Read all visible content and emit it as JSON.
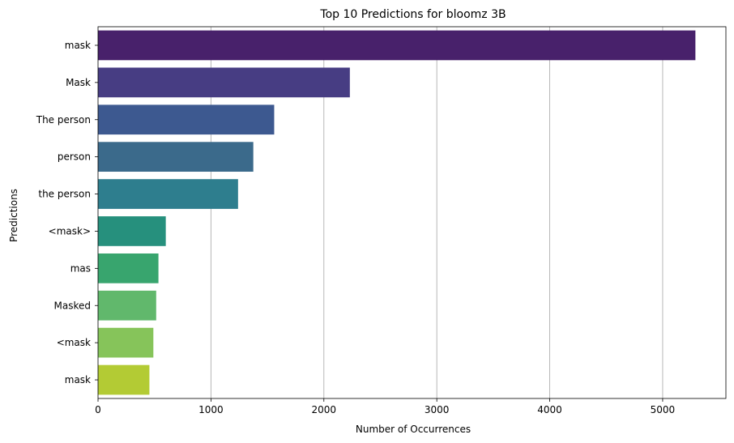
{
  "chart_data": {
    "type": "bar",
    "orientation": "horizontal",
    "title": "Top 10 Predictions for bloomz 3B",
    "xlabel": "Number of Occurrences",
    "ylabel": "Predictions",
    "categories": [
      " mask",
      " Mask",
      "The person",
      " person",
      " the person",
      "<mask>",
      " mas",
      " Masked",
      "<mask",
      "mask"
    ],
    "values": [
      5290,
      2230,
      1560,
      1375,
      1240,
      600,
      535,
      515,
      490,
      455
    ],
    "xlim": [
      0,
      5560
    ],
    "xticks": [
      0,
      1000,
      2000,
      3000,
      4000,
      5000
    ],
    "grid": "vertical",
    "palette": "viridis",
    "colors": [
      "#48216b",
      "#473d83",
      "#3d5990",
      "#3b6a8b",
      "#2e7e8e",
      "#26907d",
      "#38a56e",
      "#61b86c",
      "#86c45a",
      "#b3cb34"
    ]
  }
}
